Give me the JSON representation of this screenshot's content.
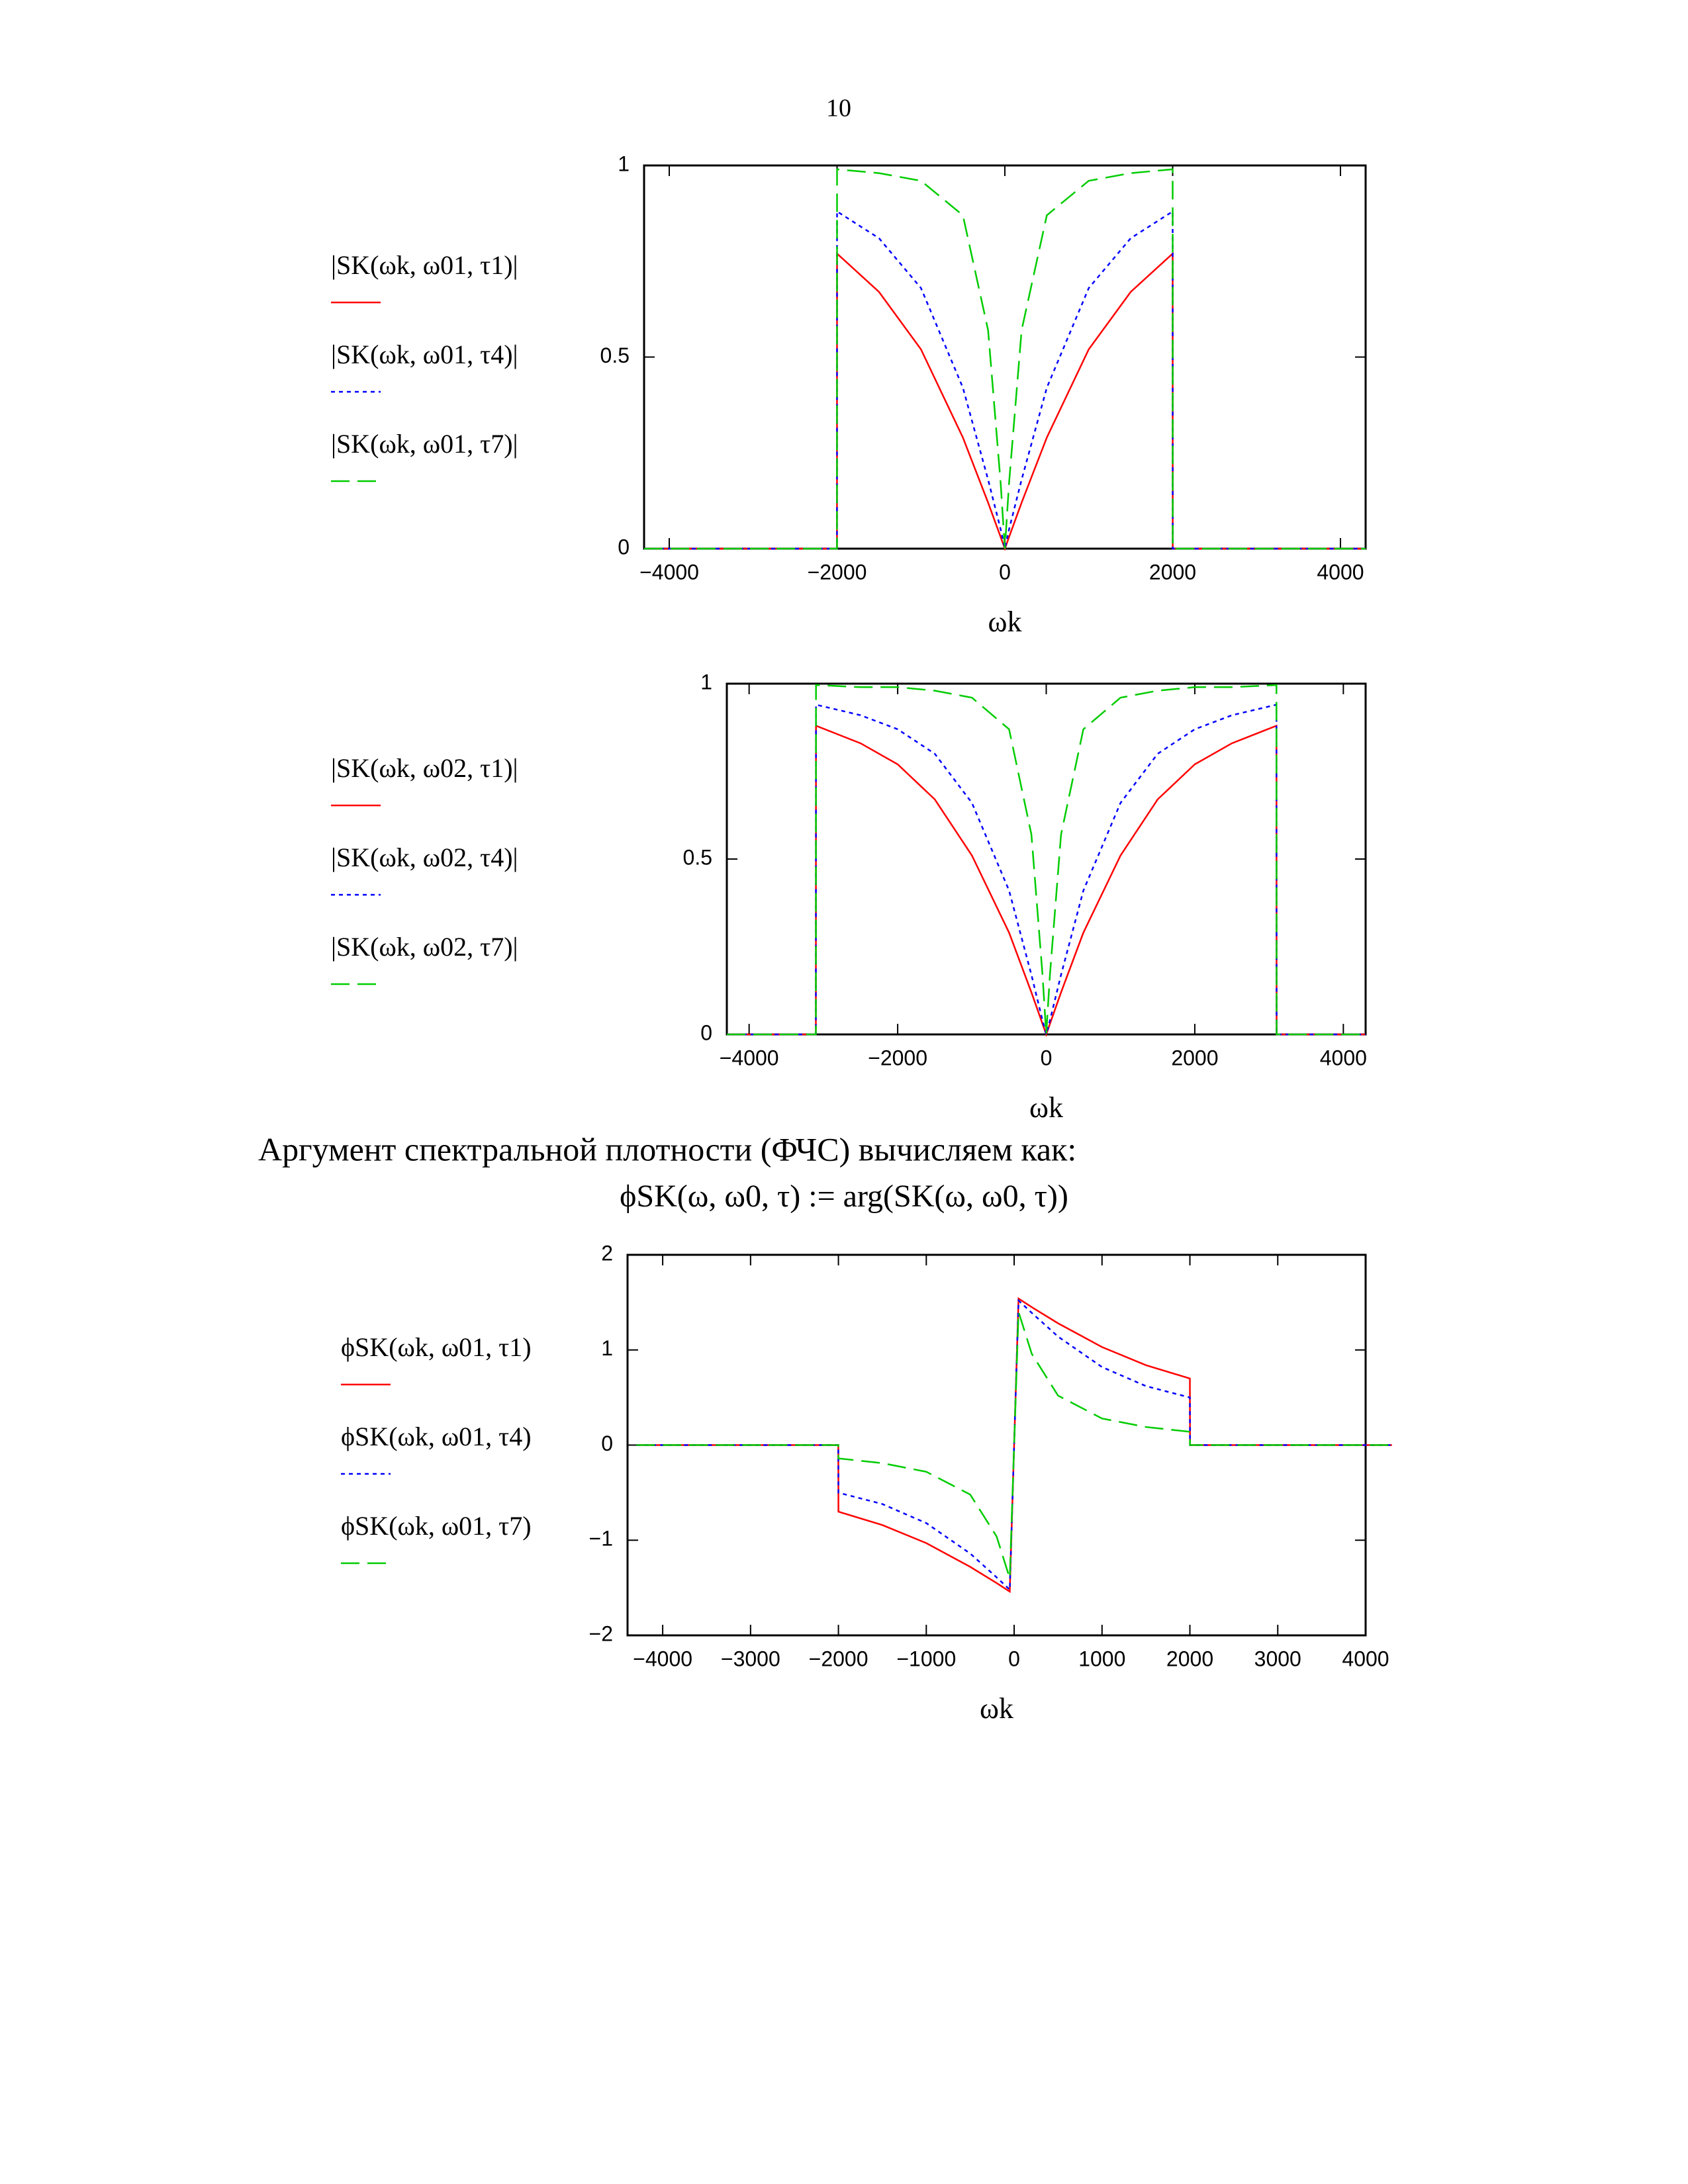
{
  "page_number": "10",
  "text": {
    "paragraph": "Аргумент спектральной плотности (ФЧС) вычисляем как:",
    "formula": "ϕSK(ω, ω0, τ) := arg(SK(ω, ω0, τ))"
  },
  "chart_data": [
    {
      "type": "line",
      "x_label": "ωk",
      "x": [
        -4300,
        -2001,
        -2000,
        -1500,
        -1000,
        -500,
        -200,
        -50,
        0,
        50,
        200,
        500,
        1000,
        1500,
        2000,
        2001,
        4300
      ],
      "series": [
        {
          "name": "|SK(ωk, ω01, τ1)|",
          "color": "#ff0000",
          "values": [
            0,
            0,
            0.77,
            0.67,
            0.52,
            0.29,
            0.12,
            0.03,
            0,
            0.03,
            0.12,
            0.29,
            0.52,
            0.67,
            0.77,
            0,
            0
          ]
        },
        {
          "name": "|SK(ωk, ω01, τ4)|",
          "color": "#0000ff",
          "values": [
            0,
            0,
            0.88,
            0.81,
            0.68,
            0.42,
            0.18,
            0.05,
            0,
            0.05,
            0.18,
            0.42,
            0.68,
            0.81,
            0.88,
            0,
            0
          ]
        },
        {
          "name": "|SK(ωk, ω01, τ7)|",
          "color": "#00cc00",
          "values": [
            0,
            0,
            0.99,
            0.98,
            0.96,
            0.87,
            0.57,
            0.17,
            0,
            0.17,
            0.57,
            0.87,
            0.96,
            0.98,
            0.99,
            0,
            0
          ]
        }
      ],
      "xlim": [
        -4300,
        4300
      ],
      "ylim": [
        0,
        1
      ],
      "xticks": [
        {
          "value": -4000,
          "label": "−4000"
        },
        {
          "value": -2000,
          "label": "−2000"
        },
        0,
        2000,
        4000
      ],
      "yticks": [
        0,
        0.5,
        1
      ],
      "grid": false
    },
    {
      "type": "line",
      "x_label": "ωk",
      "x": [
        -4300,
        -3101,
        -3100,
        -2500,
        -2000,
        -1500,
        -1000,
        -500,
        -200,
        -50,
        0,
        50,
        200,
        500,
        1000,
        1500,
        2000,
        2500,
        3100,
        3101,
        4300
      ],
      "series": [
        {
          "name": "|SK(ωk, ω02, τ1)|",
          "color": "#ff0000",
          "values": [
            0,
            0,
            0.88,
            0.83,
            0.77,
            0.67,
            0.51,
            0.29,
            0.12,
            0.03,
            0,
            0.03,
            0.12,
            0.29,
            0.51,
            0.67,
            0.77,
            0.83,
            0.88,
            0,
            0
          ]
        },
        {
          "name": "|SK(ωk, ω02, τ4)|",
          "color": "#0000ff",
          "values": [
            0,
            0,
            0.94,
            0.91,
            0.87,
            0.8,
            0.66,
            0.41,
            0.17,
            0.04,
            0,
            0.04,
            0.17,
            0.41,
            0.66,
            0.8,
            0.87,
            0.91,
            0.94,
            0,
            0
          ]
        },
        {
          "name": "|SK(ωk, ω02, τ7)|",
          "color": "#00cc00",
          "values": [
            0,
            0,
            0.996,
            0.99,
            0.99,
            0.98,
            0.96,
            0.87,
            0.57,
            0.17,
            0,
            0.17,
            0.57,
            0.87,
            0.96,
            0.98,
            0.99,
            0.99,
            0.996,
            0,
            0
          ]
        }
      ],
      "xlim": [
        -4300,
        4300
      ],
      "ylim": [
        0,
        1
      ],
      "xticks": [
        {
          "value": -4000,
          "label": "−4000"
        },
        {
          "value": -2000,
          "label": "−2000"
        },
        0,
        2000,
        4000
      ],
      "yticks": [
        0,
        0.5,
        1
      ],
      "grid": false
    },
    {
      "type": "line",
      "x_label": "ωk",
      "x": [
        -4300,
        -2001,
        -2000,
        -1500,
        -1000,
        -500,
        -200,
        -50,
        0,
        50,
        200,
        500,
        1000,
        1500,
        2000,
        2001,
        4300
      ],
      "series": [
        {
          "name": "ϕSK(ωk, ω01, τ1)",
          "color": "#ff0000",
          "values": [
            0,
            0,
            -0.7,
            -0.84,
            -1.03,
            -1.28,
            -1.45,
            -1.54,
            0,
            1.54,
            1.45,
            1.28,
            1.03,
            0.84,
            0.7,
            0,
            0
          ]
        },
        {
          "name": "ϕSK(ωk, ω01, τ4)",
          "color": "#0000ff",
          "values": [
            0,
            0,
            -0.5,
            -0.62,
            -0.82,
            -1.14,
            -1.39,
            -1.52,
            0,
            1.52,
            1.39,
            1.14,
            0.82,
            0.62,
            0.5,
            0,
            0
          ]
        },
        {
          "name": "ϕSK(ωk, ω01, τ7)",
          "color": "#00cc00",
          "values": [
            0,
            0,
            -0.14,
            -0.19,
            -0.28,
            -0.52,
            -0.96,
            -1.4,
            0,
            1.4,
            0.96,
            0.52,
            0.28,
            0.19,
            0.14,
            0,
            0
          ]
        }
      ],
      "xlim": [
        -4400,
        4000
      ],
      "ylim": [
        -2,
        2
      ],
      "xticks": [
        {
          "value": -4000,
          "label": "−4000"
        },
        {
          "value": -3000,
          "label": "−3000"
        },
        {
          "value": -2000,
          "label": "−2000"
        },
        {
          "value": -1000,
          "label": "−1000"
        },
        0,
        1000,
        2000,
        3000,
        4000
      ],
      "yticks": [
        {
          "value": -2,
          "label": "−2"
        },
        {
          "value": -1,
          "label": "−1"
        },
        0,
        1,
        2
      ],
      "grid": false
    }
  ]
}
